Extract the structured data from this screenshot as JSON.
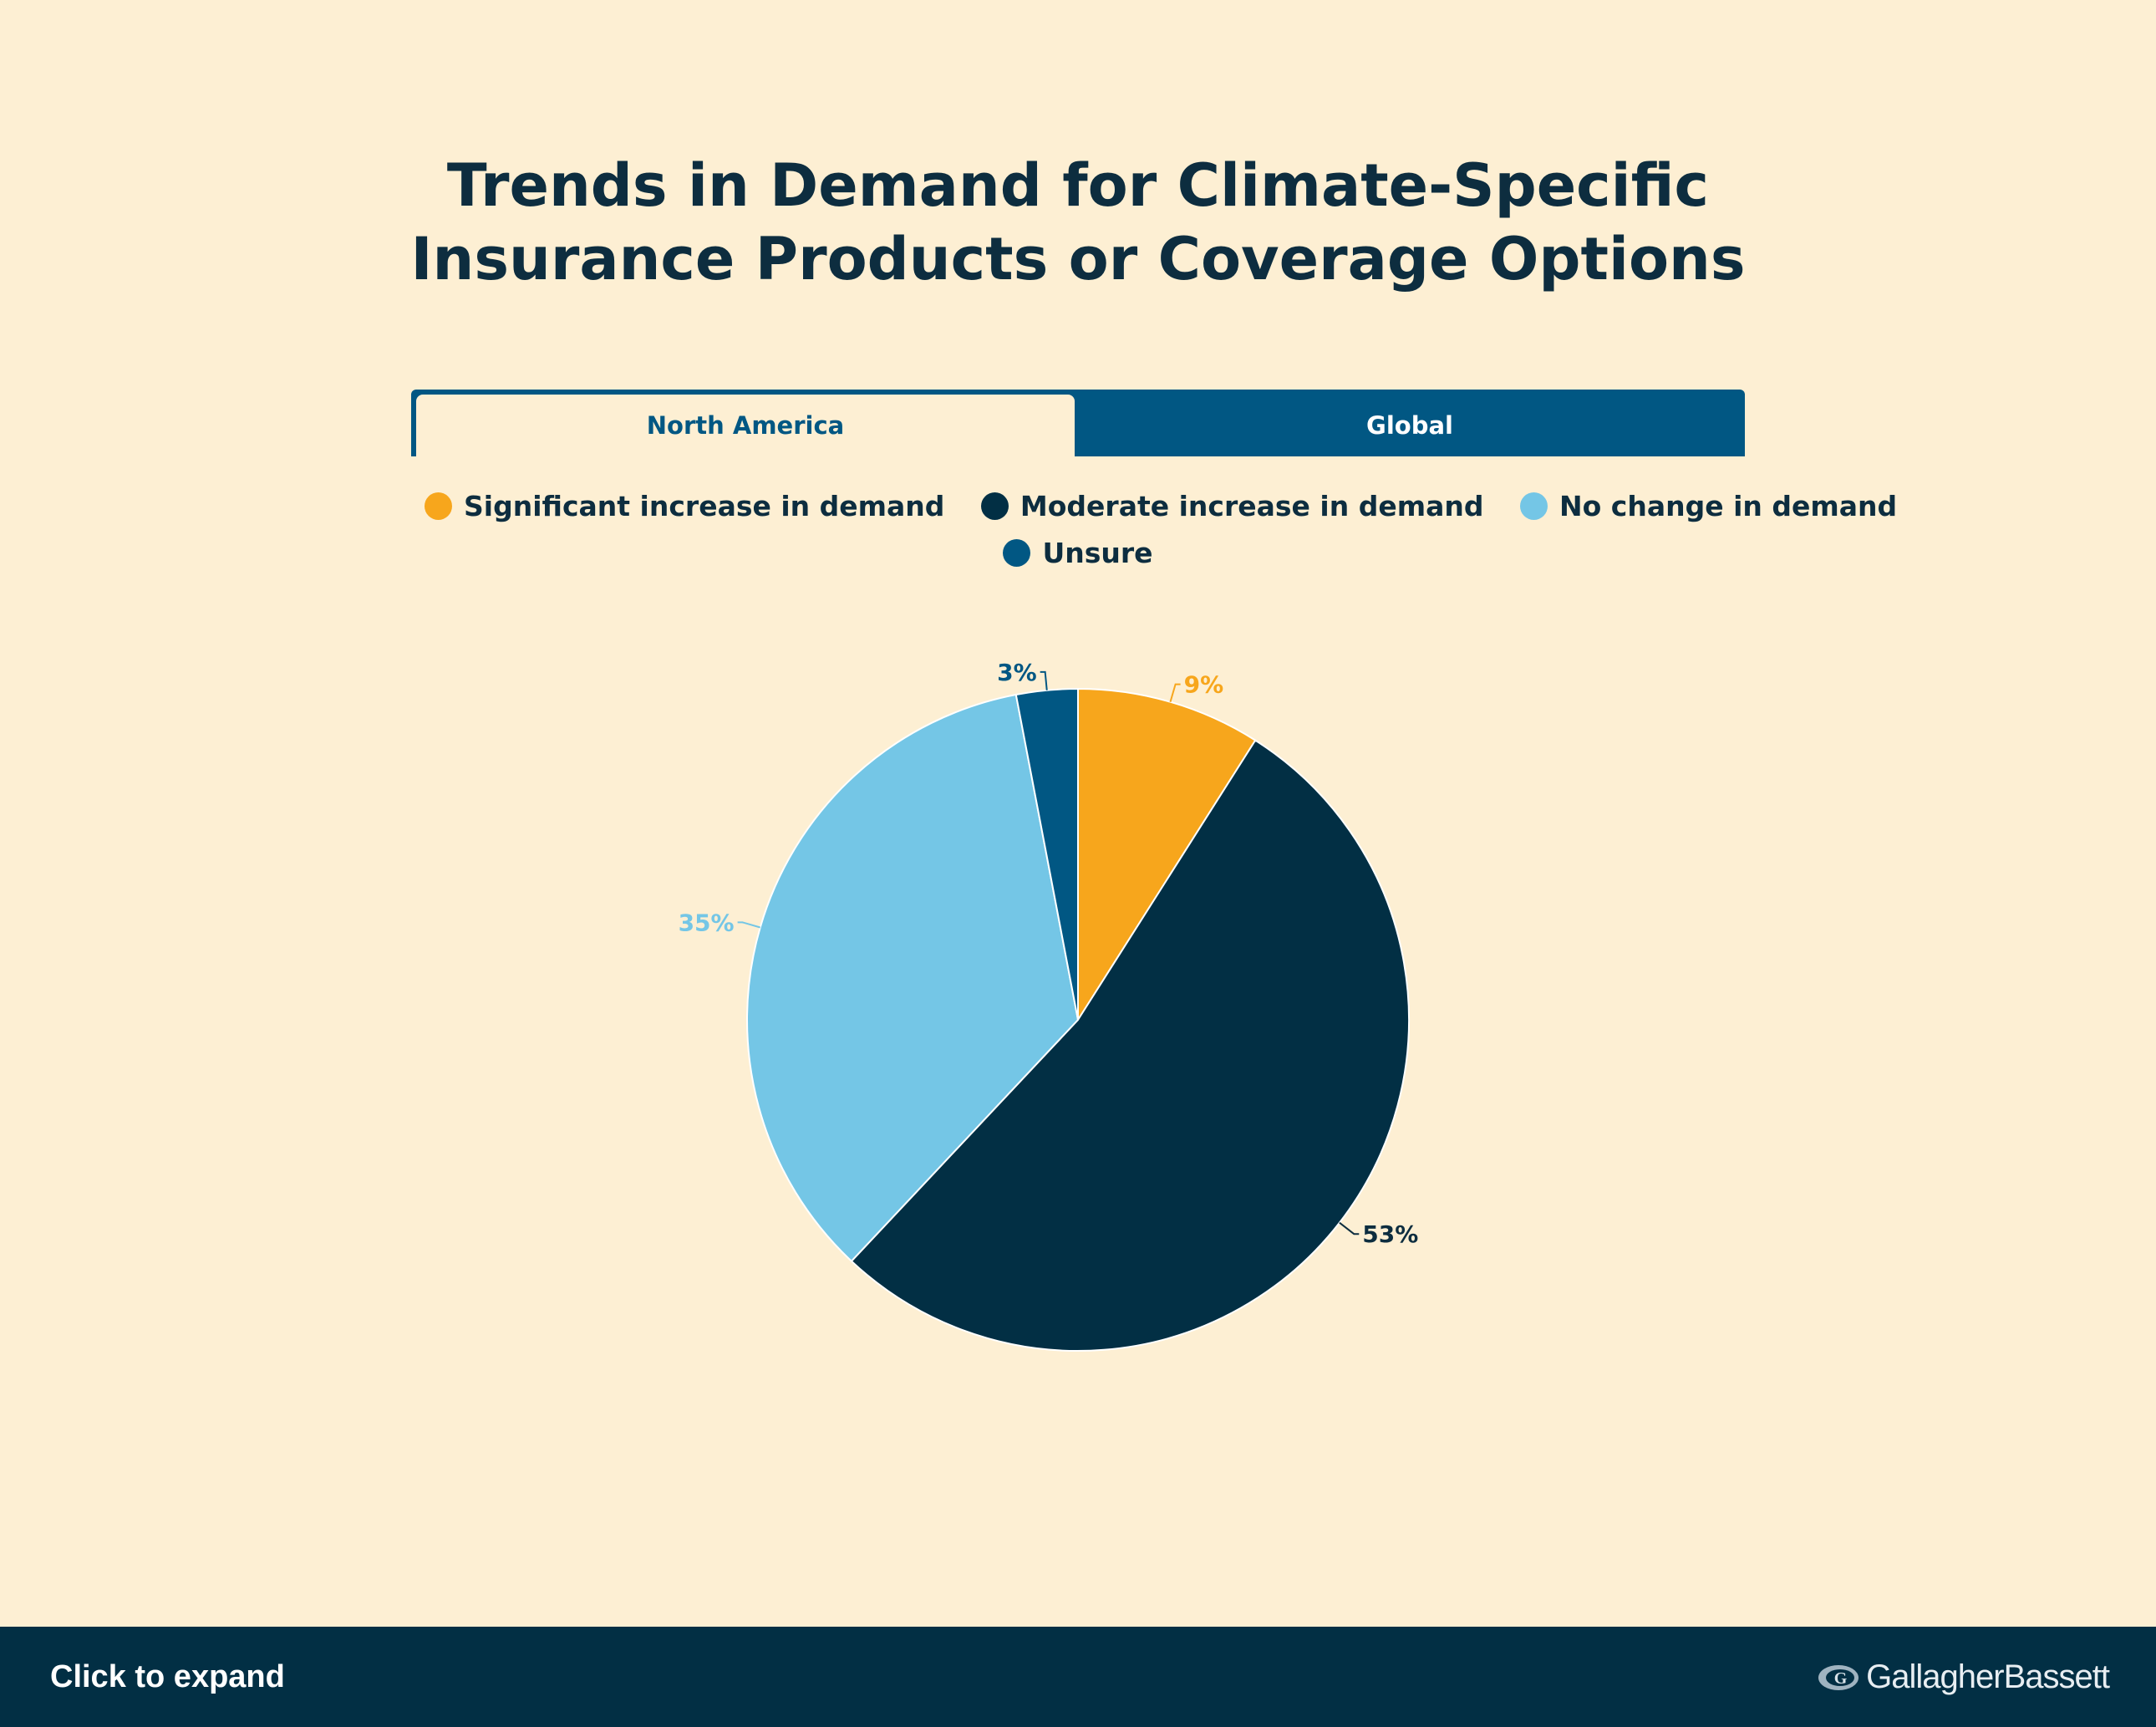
{
  "title": {
    "line1": "Trends in Demand for Climate-Specific",
    "line2": "Insurance Products or Coverage Options"
  },
  "tabs": [
    {
      "label": "North America",
      "active": true
    },
    {
      "label": "Global",
      "active": false
    }
  ],
  "legend": [
    {
      "label": "Significant increase in demand",
      "color": "#f7a61c"
    },
    {
      "label": "Moderate increase in demand",
      "color": "#022f44"
    },
    {
      "label": "No change in demand",
      "color": "#74c6e6"
    },
    {
      "label": "Unsure",
      "color": "#015783"
    }
  ],
  "chart_data": {
    "type": "pie",
    "title": "Trends in Demand for Climate-Specific Insurance Products or Coverage Options",
    "categories": [
      "Significant increase in demand",
      "Moderate increase in demand",
      "No change in demand",
      "Unsure"
    ],
    "values": [
      9,
      53,
      35,
      3
    ],
    "labels": [
      "9%",
      "53%",
      "35%",
      "3%"
    ],
    "colors": [
      "#f7a61c",
      "#022f44",
      "#74c6e6",
      "#015783"
    ],
    "legend": "top"
  },
  "footer": {
    "expand_label": "Click to expand",
    "brand": "GallagherBassett",
    "brand_first": "Gallagher",
    "brand_second": "Bassett"
  }
}
